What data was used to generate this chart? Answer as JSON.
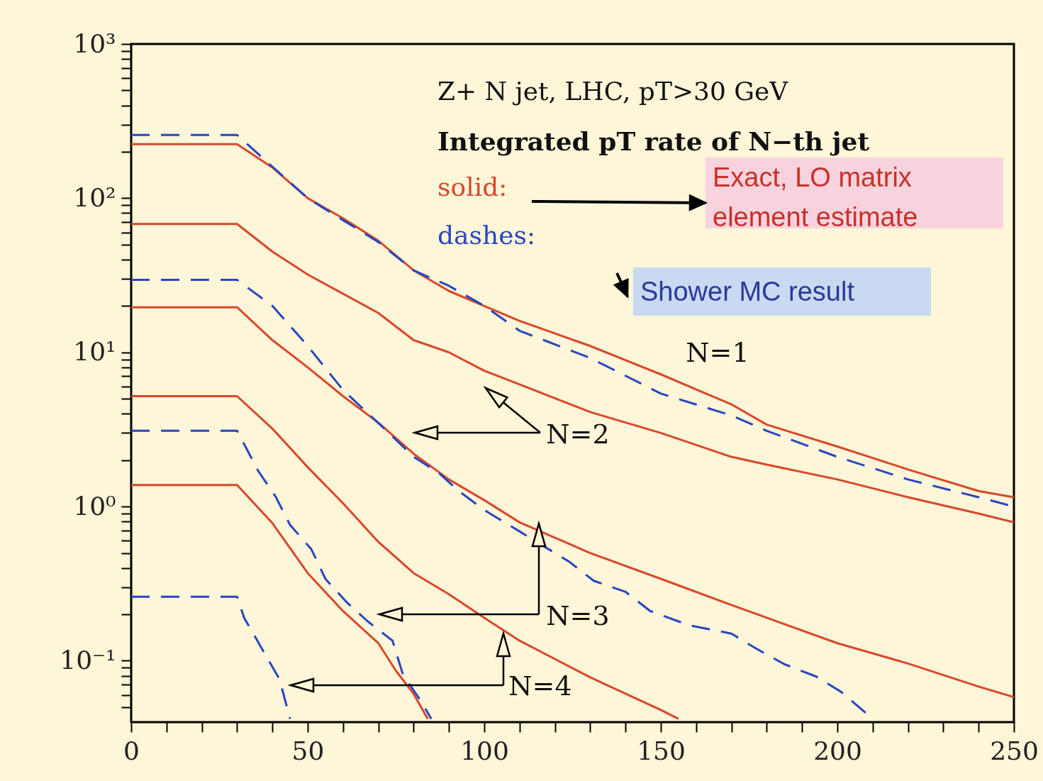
{
  "chart_data": {
    "type": "line",
    "log": "y",
    "xlim": [
      0,
      250
    ],
    "ylim": [
      0.04,
      1000
    ],
    "xticks": [
      0,
      {
        "value": 10,
        "label": null
      },
      {
        "value": 20,
        "label": null
      },
      {
        "value": 30,
        "label": null
      },
      {
        "value": 40,
        "label": null
      },
      50,
      {
        "value": 60,
        "label": null
      },
      {
        "value": 70,
        "label": null
      },
      {
        "value": 80,
        "label": null
      },
      {
        "value": 90,
        "label": null
      },
      100,
      {
        "value": 110,
        "label": null
      },
      {
        "value": 120,
        "label": null
      },
      {
        "value": 130,
        "label": null
      },
      {
        "value": 140,
        "label": null
      },
      150,
      {
        "value": 160,
        "label": null
      },
      {
        "value": 170,
        "label": null
      },
      {
        "value": 180,
        "label": null
      },
      {
        "value": 190,
        "label": null
      },
      200,
      {
        "value": 210,
        "label": null
      },
      {
        "value": 220,
        "label": null
      },
      {
        "value": 230,
        "label": null
      },
      {
        "value": 240,
        "label": null
      },
      250
    ],
    "yticks": [
      {
        "value": 0.05,
        "label": null
      },
      {
        "value": 0.06,
        "label": null
      },
      {
        "value": 0.07,
        "label": null
      },
      {
        "value": 0.08,
        "label": null
      },
      {
        "value": 0.09,
        "label": null
      },
      {
        "value": 0.1,
        "label": "10⁻¹"
      },
      {
        "value": 0.2,
        "label": null
      },
      {
        "value": 0.3,
        "label": null
      },
      {
        "value": 0.4,
        "label": null
      },
      {
        "value": 0.5,
        "label": null
      },
      {
        "value": 0.6,
        "label": null
      },
      {
        "value": 0.7,
        "label": null
      },
      {
        "value": 0.8,
        "label": null
      },
      {
        "value": 0.9,
        "label": null
      },
      {
        "value": 1,
        "label": "10⁰"
      },
      {
        "value": 2,
        "label": null
      },
      {
        "value": 3,
        "label": null
      },
      {
        "value": 4,
        "label": null
      },
      {
        "value": 5,
        "label": null
      },
      {
        "value": 6,
        "label": null
      },
      {
        "value": 7,
        "label": null
      },
      {
        "value": 8,
        "label": null
      },
      {
        "value": 9,
        "label": null
      },
      {
        "value": 10,
        "label": "10¹"
      },
      {
        "value": 20,
        "label": null
      },
      {
        "value": 30,
        "label": null
      },
      {
        "value": 40,
        "label": null
      },
      {
        "value": 50,
        "label": null
      },
      {
        "value": 60,
        "label": null
      },
      {
        "value": 70,
        "label": null
      },
      {
        "value": 80,
        "label": null
      },
      {
        "value": 90,
        "label": null
      },
      {
        "value": 100,
        "label": "10²"
      },
      {
        "value": 200,
        "label": null
      },
      {
        "value": 300,
        "label": null
      },
      {
        "value": 400,
        "label": null
      },
      {
        "value": 500,
        "label": null
      },
      {
        "value": 600,
        "label": null
      },
      {
        "value": 700,
        "label": null
      },
      {
        "value": 800,
        "label": null
      },
      {
        "value": 900,
        "label": null
      },
      {
        "value": 1000,
        "label": "10³"
      }
    ],
    "series": [
      {
        "color": "#d9472b",
        "line_style": "solid",
        "x": [
          0,
          30,
          40,
          50,
          60,
          70,
          80,
          90,
          100,
          110,
          130,
          150,
          170,
          180,
          200,
          220,
          240,
          250
        ],
        "values": [
          224,
          224,
          158,
          100,
          74,
          53,
          34,
          25,
          20,
          16,
          11,
          7.2,
          4.6,
          3.4,
          2.45,
          1.74,
          1.26,
          1.15
        ]
      },
      {
        "color": "#d9472b",
        "line_style": "solid",
        "x": [
          0,
          30,
          40,
          50,
          60,
          70,
          80,
          90,
          100,
          110,
          130,
          150,
          170,
          180,
          200,
          220,
          240,
          250
        ],
        "values": [
          68,
          68,
          45,
          32,
          24,
          18,
          12,
          10,
          7.6,
          6.2,
          4.1,
          3.0,
          2.1,
          1.87,
          1.5,
          1.15,
          0.9,
          0.79
        ]
      },
      {
        "color": "#2a45c0",
        "line_style": "dashed",
        "x": [
          0,
          30,
          40,
          50,
          60,
          70,
          80,
          90,
          100,
          110,
          130,
          150,
          170,
          180,
          200,
          220,
          240,
          250
        ],
        "values": [
          257,
          257,
          160,
          100,
          72,
          52,
          34,
          27,
          20,
          13.8,
          9.2,
          5.4,
          3.9,
          3.1,
          2.1,
          1.5,
          1.15,
          1.0
        ]
      },
      {
        "color": "#d9472b",
        "line_style": "solid",
        "x": [
          0,
          30,
          40,
          50,
          60,
          70,
          80,
          90,
          100,
          110,
          130,
          150,
          170,
          180,
          200,
          220,
          240,
          250
        ],
        "values": [
          19.6,
          19.6,
          12,
          8,
          5.2,
          3.5,
          2.2,
          1.5,
          1.1,
          0.79,
          0.5,
          0.34,
          0.23,
          0.19,
          0.13,
          0.096,
          0.068,
          0.058
        ]
      },
      {
        "color": "#2a45c0",
        "line_style": "dashed",
        "x": [
          0,
          30,
          40,
          50,
          60,
          73,
          80,
          87,
          93,
          100,
          110,
          117,
          124,
          131,
          140,
          147,
          158,
          170,
          177,
          185,
          194,
          201,
          208
        ],
        "values": [
          29.5,
          29.5,
          20,
          11,
          5.7,
          3.0,
          2.1,
          1.66,
          1.25,
          0.95,
          0.69,
          0.55,
          0.44,
          0.33,
          0.28,
          0.21,
          0.17,
          0.15,
          0.12,
          0.095,
          0.079,
          0.063,
          0.046
        ]
      },
      {
        "color": "#d9472b",
        "line_style": "solid",
        "x": [
          0,
          30,
          40,
          50,
          60,
          70,
          80,
          90,
          100,
          110,
          130,
          150,
          155
        ],
        "values": [
          5.2,
          5.2,
          3.2,
          1.8,
          1.05,
          0.59,
          0.37,
          0.27,
          0.19,
          0.135,
          0.078,
          0.048,
          0.042
        ]
      },
      {
        "color": "#2a45c0",
        "line_style": "dashed",
        "x": [
          0,
          30,
          36,
          41,
          45,
          51,
          55,
          61,
          67,
          74,
          77,
          82,
          85
        ],
        "values": [
          3.1,
          3.1,
          1.7,
          1.15,
          0.76,
          0.53,
          0.34,
          0.24,
          0.18,
          0.135,
          0.081,
          0.055,
          0.042
        ]
      },
      {
        "color": "#d9472b",
        "line_style": "solid",
        "x": [
          0,
          30,
          40,
          50,
          60,
          70,
          75,
          80,
          84
        ],
        "values": [
          1.38,
          1.38,
          0.78,
          0.37,
          0.21,
          0.13,
          0.086,
          0.061,
          0.042
        ]
      },
      {
        "color": "#2a45c0",
        "line_style": "dashed",
        "x": [
          0,
          30,
          32,
          37,
          42,
          45
        ],
        "values": [
          0.26,
          0.26,
          0.19,
          0.12,
          0.076,
          0.042
        ]
      }
    ],
    "annotations": [
      "Z+ N jet, LHC, pT>30 GeV",
      "Integrated pT rate of N−th jet",
      "solid:",
      "dashes:",
      "Exact, LO matrix element estimate",
      "Shower MC result",
      "N=1",
      "N=2",
      "N=3",
      "N=4"
    ]
  }
}
